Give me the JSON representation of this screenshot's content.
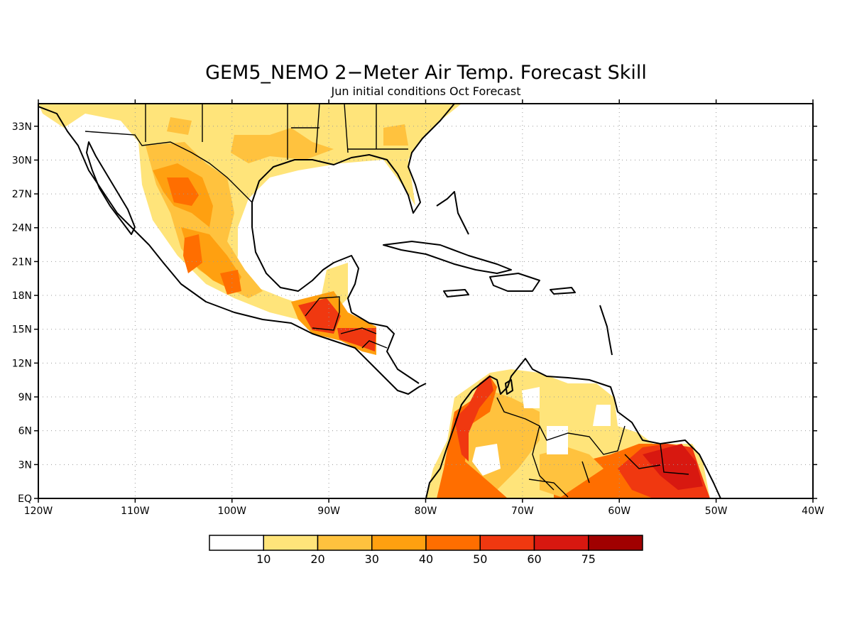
{
  "title": "GEM5_NEMO 2−Meter Air Temp. Forecast Skill",
  "subtitle": "Jun initial conditions  Oct Forecast",
  "map": {
    "lon_range": [
      -120,
      -40
    ],
    "lat_range": [
      0,
      35
    ],
    "lat_ticks": [
      "EQ",
      "3N",
      "6N",
      "9N",
      "12N",
      "15N",
      "18N",
      "21N",
      "24N",
      "27N",
      "30N",
      "33N"
    ],
    "lon_ticks": [
      "120W",
      "110W",
      "100W",
      "90W",
      "80W",
      "70W",
      "60W",
      "50W",
      "40W"
    ],
    "grid": "dotted"
  },
  "colorbar": {
    "labels": [
      "10",
      "20",
      "30",
      "40",
      "50",
      "60",
      "75"
    ],
    "colors": [
      "#ffffff",
      "#ffe47a",
      "#ffc23e",
      "#ffa010",
      "#ff6e00",
      "#f03810",
      "#d81810",
      "#a00000"
    ]
  },
  "icons": {
    "coastline": "coastline-outline",
    "borders": "country-border-lines"
  }
}
